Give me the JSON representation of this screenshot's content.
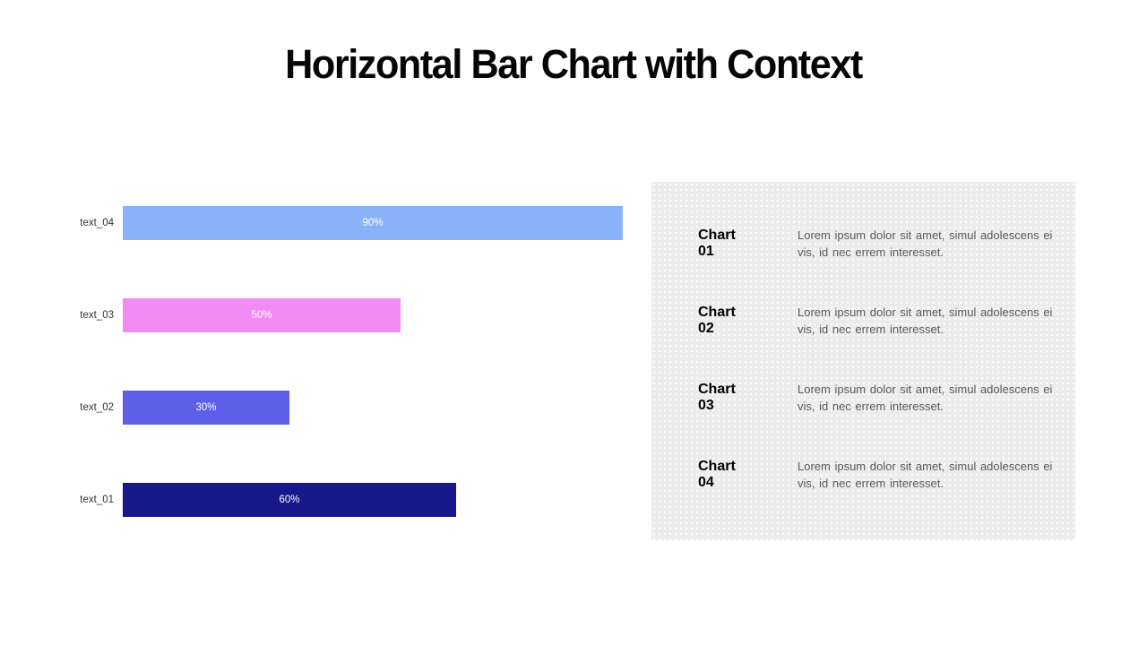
{
  "title": "Horizontal Bar Chart with Context",
  "chart_data": {
    "type": "bar",
    "orientation": "horizontal",
    "categories": [
      "text_04",
      "text_03",
      "text_02",
      "text_01"
    ],
    "values": [
      90,
      50,
      30,
      60
    ],
    "value_labels": [
      "90%",
      "50%",
      "30%",
      "60%"
    ],
    "bar_colors": [
      "#8AB2F8",
      "#F18CF5",
      "#5D5FE8",
      "#16188C"
    ],
    "value_label_color": "#ffffff",
    "xlim": [
      0,
      100
    ],
    "grid": false,
    "legend": false
  },
  "panel": {
    "background_color": "#ececec",
    "entries": [
      {
        "label": "Chart 01",
        "description": "Lorem ipsum dolor sit amet, simul adolescens ei vis, id nec errem interesset."
      },
      {
        "label": "Chart 02",
        "description": "Lorem ipsum dolor sit amet, simul adolescens ei vis, id nec errem interesset."
      },
      {
        "label": "Chart 03",
        "description": "Lorem ipsum dolor sit amet, simul adolescens ei vis, id nec errem interesset."
      },
      {
        "label": "Chart 04",
        "description": "Lorem ipsum dolor sit amet, simul adolescens ei vis, id nec errem interesset."
      }
    ]
  }
}
